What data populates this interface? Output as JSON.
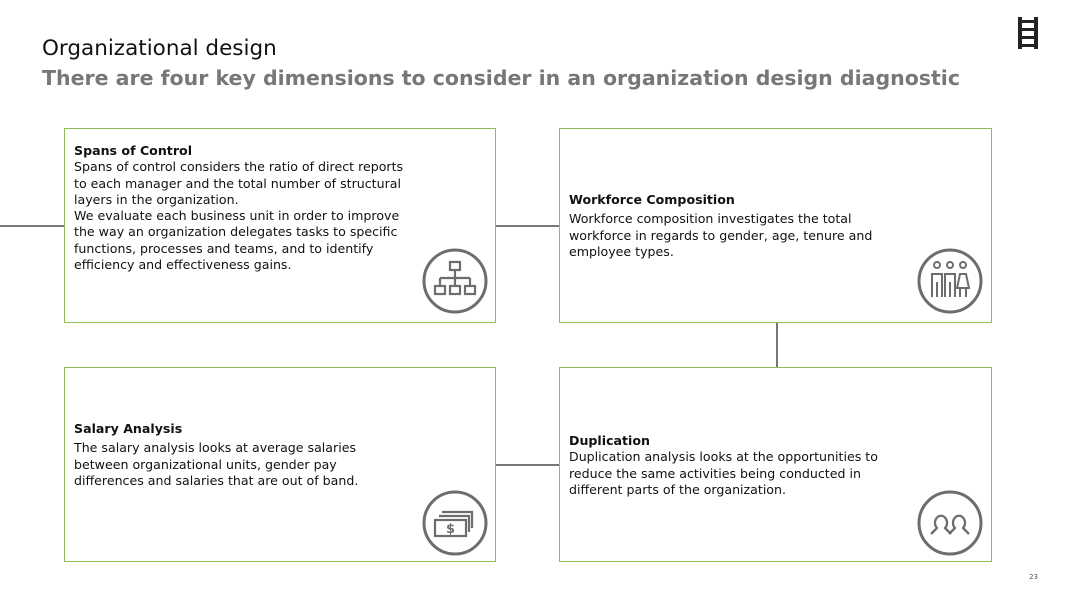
{
  "header": {
    "title": "Organizational design",
    "subtitle": "There are four key dimensions to consider in an organization design diagnostic"
  },
  "cards": {
    "spans": {
      "heading": "Spans of Control",
      "para1": "Spans of control considers the ratio of direct reports to each manager and the total number of structural layers in the organization.",
      "para2": "We evaluate each business unit in order to improve the way an organization delegates tasks to specific functions, processes and teams, and to identify efficiency and effectiveness gains.",
      "icon": "org-chart-icon"
    },
    "workforce": {
      "heading": "Workforce Composition",
      "para1": "Workforce composition investigates the total workforce in regards to gender, age, tenure and employee types.",
      "icon": "people-group-icon"
    },
    "salary": {
      "heading": "Salary Analysis",
      "para1": "The salary analysis looks at average salaries between organizational units, gender pay differences and salaries that are out of band.",
      "icon": "money-bills-icon"
    },
    "duplication": {
      "heading": "Duplication",
      "para1": "Duplication analysis looks at the opportunities to reduce the same activities being conducted in different parts of the organization.",
      "icon": "duplicate-people-icon"
    }
  },
  "footer": {
    "page_number": "23"
  },
  "colors": {
    "card_border": "#8fbc56",
    "icon_stroke": "#6d6d6d",
    "connector": "#777777",
    "subtitle": "#777777"
  },
  "logo": {
    "icon": "ladder-logo-icon"
  }
}
